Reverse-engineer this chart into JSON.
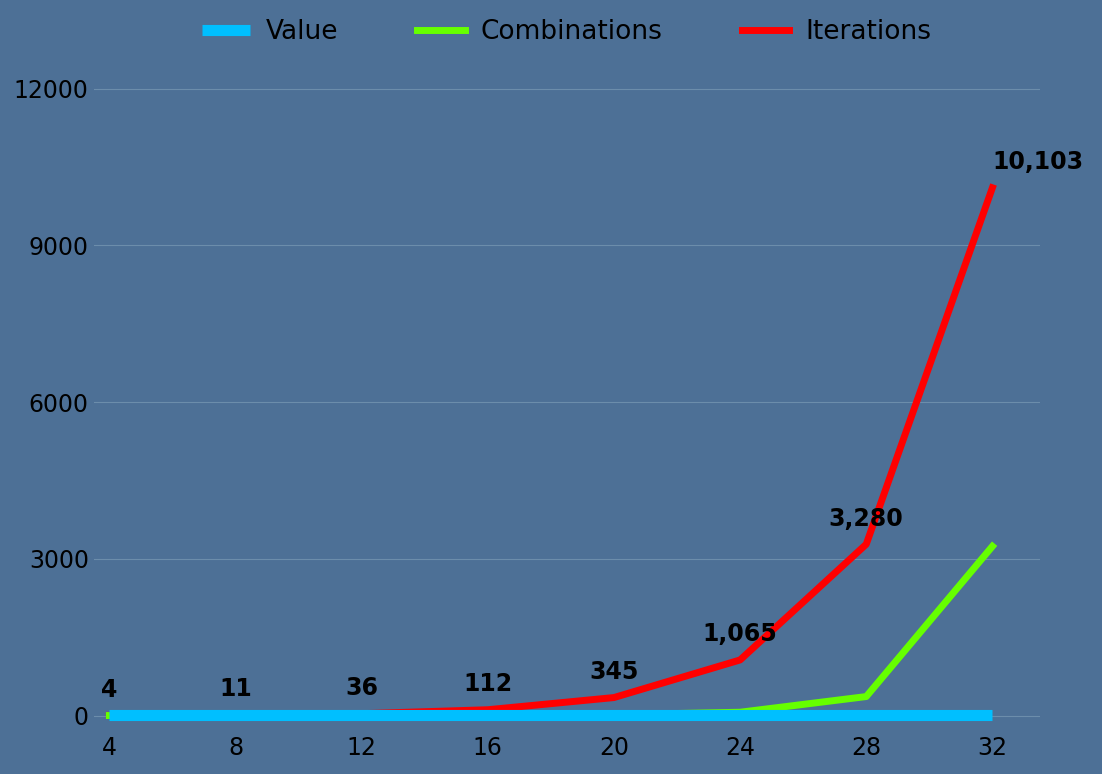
{
  "x": [
    4,
    8,
    12,
    16,
    20,
    24,
    28,
    32
  ],
  "value": [
    4,
    4,
    4,
    4,
    4,
    4,
    4,
    4
  ],
  "combinations": [
    1,
    2,
    4,
    8,
    16,
    64,
    364,
    3240
  ],
  "iterations": [
    4,
    11,
    36,
    112,
    345,
    1065,
    3280,
    10103
  ],
  "iter_labels": [
    "4",
    "11",
    "36",
    "112",
    "345",
    "1,065",
    "3,280",
    "10,103"
  ],
  "background_color": "#4d7096",
  "line_color_value": "#00bfff",
  "line_color_combinations": "#66ff00",
  "line_color_iterations": "#ff0000",
  "grid_color": "#7a9ab5",
  "text_color": "#000000",
  "legend_text_color": "#000000",
  "yticks": [
    0,
    3000,
    6000,
    9000,
    12000
  ],
  "xticks": [
    4,
    8,
    12,
    16,
    20,
    24,
    28,
    32
  ],
  "ylim": [
    -300,
    13000
  ],
  "xlim": [
    3.5,
    33.5
  ],
  "legend_labels": [
    "Value",
    "Combinations",
    "Iterations"
  ]
}
